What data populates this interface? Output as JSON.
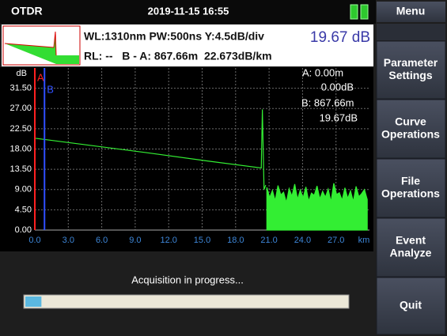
{
  "header": {
    "title": "OTDR",
    "datetime": "2019-11-15 16:55",
    "menu": "Menu"
  },
  "info": {
    "line1": "WL:1310nm PW:500ns Y:4.5dB/div",
    "reading": "19.67 dB",
    "line2": "RL: --   B - A: 867.66m  22.673dB/km"
  },
  "chart_data": {
    "type": "line",
    "y_unit": "dB",
    "x_unit": "km",
    "xlim": [
      0,
      30
    ],
    "xticks": [
      {
        "value": 0,
        "label": "0.0"
      },
      {
        "value": 3,
        "label": "3.0"
      },
      {
        "value": 6,
        "label": "6.0"
      },
      {
        "value": 9,
        "label": "9.0"
      },
      {
        "value": 12,
        "label": "12.0"
      },
      {
        "value": 15,
        "label": "15.0"
      },
      {
        "value": 18,
        "label": "18.0"
      },
      {
        "value": 21,
        "label": "21.0"
      },
      {
        "value": 24,
        "label": "24.0"
      },
      {
        "value": 27,
        "label": "27.0"
      }
    ],
    "ylim": [
      0,
      36
    ],
    "yticks": [
      {
        "value": 0,
        "label": "0.00"
      },
      {
        "value": 4.5,
        "label": "4.50"
      },
      {
        "value": 9,
        "label": "9.00"
      },
      {
        "value": 13.5,
        "label": "13.50"
      },
      {
        "value": 18,
        "label": "18.00"
      },
      {
        "value": 22.5,
        "label": "22.50"
      },
      {
        "value": 27,
        "label": "27.00"
      },
      {
        "value": 31.5,
        "label": "31.50"
      }
    ],
    "grid": true,
    "series": [
      {
        "color": "#33ee33",
        "fill": false,
        "x": [
          0,
          5,
          10,
          15,
          20.3,
          20.4,
          20.55,
          20.7
        ],
        "values": [
          20.4,
          18.8,
          17.2,
          15.5,
          13.8,
          26.8,
          9,
          10
        ]
      },
      {
        "color": "#33ee33",
        "fill": true,
        "x": [
          20.8,
          21.05,
          21.3,
          21.55,
          21.8,
          22.05,
          22.3,
          22.55,
          22.8,
          23.05,
          23.3,
          23.55,
          23.8,
          24.05,
          24.3,
          24.55,
          24.8,
          25.05,
          25.3,
          25.55,
          25.8,
          26.05,
          26.3,
          26.55,
          26.8,
          27.05,
          27.3,
          27.55,
          27.8,
          28.05,
          28.3,
          28.55,
          28.8,
          29.05,
          29.3,
          29.55,
          29.8
        ],
        "values": [
          9.5,
          7.2,
          8.8,
          6.5,
          9.9,
          7.8,
          8.4,
          6.1,
          9.2,
          7.5,
          10.2,
          6.8,
          8.9,
          7.1,
          9.6,
          6.4,
          8.2,
          7.7,
          9.8,
          6.9,
          8.6,
          7.3,
          9.1,
          6.2,
          10.4,
          7.9,
          8.3,
          6.6,
          9.4,
          7.0,
          8.7,
          6.3,
          9.7,
          7.4,
          8.1,
          9.0,
          6.8
        ]
      }
    ],
    "cursors": [
      {
        "label": "A",
        "x": 0,
        "color": "#ff2020"
      },
      {
        "label": "B",
        "x": 0.86766,
        "color": "#2f4fff"
      }
    ],
    "readout": [
      "A: 0.00m",
      "0.00dB",
      "B: 867.66m",
      "19.67dB"
    ]
  },
  "menu_buttons": [
    [
      "Parameter",
      "Settings"
    ],
    [
      "Curve",
      "Operations"
    ],
    [
      "File",
      "Operations"
    ],
    [
      "Event",
      "Analyze"
    ],
    [
      "Quit"
    ]
  ],
  "status": "Acquisition in progress...",
  "progress": 5
}
